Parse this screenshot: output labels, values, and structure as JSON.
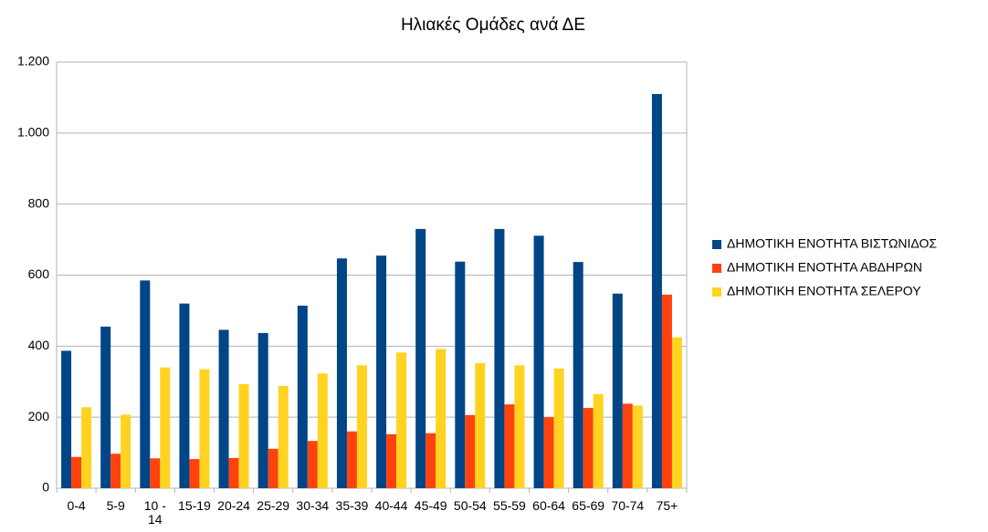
{
  "chart_data": {
    "type": "bar",
    "title": "Ηλιακές Ομάδες ανά ΔΕ",
    "categories": [
      "0-4",
      "5-9",
      "10 - 14",
      "15-19",
      "20-24",
      "25-29",
      "30-34",
      "35-39",
      "40-44",
      "45-49",
      "50-54",
      "55-59",
      "60-64",
      "65-69",
      "70-74",
      "75+"
    ],
    "series": [
      {
        "name": "ΔΗΜΟΤΙΚΗ ΕΝΟΤΗΤΑ ΒΙΣΤΩΝΙΔΟΣ",
        "color": "#004586",
        "values": [
          387,
          455,
          585,
          520,
          446,
          437,
          514,
          647,
          655,
          730,
          638,
          730,
          711,
          637,
          548,
          1110
        ]
      },
      {
        "name": "ΔΗΜΟΤΙΚΗ ΕΝΟΤΗΤΑ ΑΒΔΗΡΩΝ",
        "color": "#ff420e",
        "values": [
          88,
          97,
          84,
          82,
          85,
          111,
          133,
          160,
          152,
          155,
          206,
          236,
          200,
          226,
          238,
          545
        ]
      },
      {
        "name": "ΔΗΜΟΤΙΚΗ ΕΝΟΤΗΤΑ ΣΕΛΕΡΟΥ",
        "color": "#ffd320",
        "values": [
          228,
          207,
          340,
          335,
          293,
          288,
          323,
          346,
          382,
          392,
          352,
          346,
          337,
          265,
          233,
          425
        ]
      }
    ],
    "ylim": [
      0,
      1200
    ],
    "yticks": [
      0,
      200,
      400,
      600,
      800,
      {
        "value": 1000,
        "label": "1.000"
      },
      {
        "value": 1200,
        "label": "1.200"
      }
    ],
    "grid": true,
    "legend": "right"
  }
}
